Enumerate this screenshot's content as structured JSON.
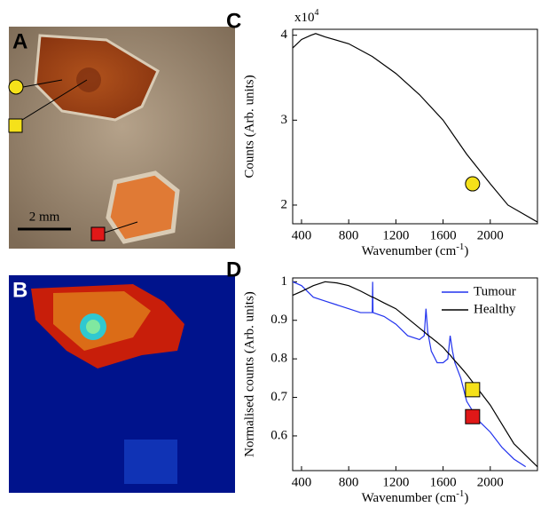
{
  "panels": [
    {
      "label": "A",
      "scale_bar": "2 mm"
    },
    {
      "label": "B"
    }
  ],
  "chart_data": [
    {
      "type": "line",
      "label": "C",
      "multiplier": [
        "x10",
        "4"
      ],
      "y_label": "Counts (Arb. units)",
      "x_label": [
        "Wavenumber (cm",
        "-1",
        ")"
      ],
      "x": [
        325,
        400,
        480,
        520,
        600,
        800,
        1000,
        1200,
        1400,
        1600,
        1800,
        2000,
        2150,
        2400
      ],
      "series": [
        {
          "color": "#000000",
          "values": [
            3.85,
            3.95,
            4.0,
            4.02,
            3.98,
            3.9,
            3.75,
            3.55,
            3.3,
            3.0,
            2.6,
            2.25,
            2.0,
            1.8
          ]
        }
      ],
      "markers": [
        {
          "x": 1850,
          "y": 2.25,
          "shape": "circle",
          "color": "#f5e11a"
        }
      ],
      "xlim": [
        325,
        2400
      ],
      "xticks": [
        400,
        800,
        1200,
        1600,
        2000
      ],
      "ylim": [
        1.78,
        4.07
      ],
      "yticks": [
        2,
        3,
        4
      ]
    },
    {
      "type": "line",
      "label": "D",
      "y_label": "Normalised counts (Arb. units)",
      "x_label": [
        "Wavenumber (cm",
        "-1",
        ")"
      ],
      "x": [
        325,
        400,
        500,
        600,
        700,
        800,
        900,
        1000,
        1003,
        1006,
        1100,
        1200,
        1300,
        1400,
        1440,
        1455,
        1470,
        1500,
        1550,
        1600,
        1640,
        1660,
        1680,
        1700,
        1750,
        1800,
        1900,
        2000,
        2100,
        2200,
        2300,
        2400
      ],
      "series": [
        {
          "name": "Tumour",
          "color": "#2233ee",
          "values": [
            1.0,
            0.99,
            0.96,
            0.95,
            0.94,
            0.93,
            0.92,
            0.92,
            1.0,
            0.92,
            0.91,
            0.89,
            0.86,
            0.85,
            0.86,
            0.93,
            0.87,
            0.82,
            0.79,
            0.79,
            0.8,
            0.86,
            0.82,
            0.79,
            0.75,
            0.69,
            0.64,
            0.61,
            0.57,
            0.54,
            0.52,
            null
          ]
        },
        {
          "name": "Healthy",
          "color": "#000000",
          "values": [
            0.965,
            0.975,
            0.99,
            1.0,
            0.997,
            0.99,
            0.976,
            0.96,
            0.96,
            0.96,
            0.945,
            0.93,
            0.905,
            0.88,
            0.87,
            0.866,
            0.862,
            0.855,
            0.843,
            0.83,
            0.816,
            0.81,
            0.802,
            0.795,
            0.778,
            0.76,
            0.72,
            0.68,
            0.63,
            0.58,
            0.55,
            0.52
          ]
        }
      ],
      "markers": [
        {
          "x": 1850,
          "y": 0.72,
          "shape": "square",
          "color": "#f5e11a"
        },
        {
          "x": 1850,
          "y": 0.65,
          "shape": "square",
          "color": "#e01818"
        }
      ],
      "legend": "upper right",
      "xlim": [
        325,
        2400
      ],
      "xticks": [
        400,
        800,
        1200,
        1600,
        2000
      ],
      "ylim": [
        0.51,
        1.01
      ],
      "yticks": [
        0.6,
        0.7,
        0.8,
        0.9,
        1
      ]
    }
  ]
}
